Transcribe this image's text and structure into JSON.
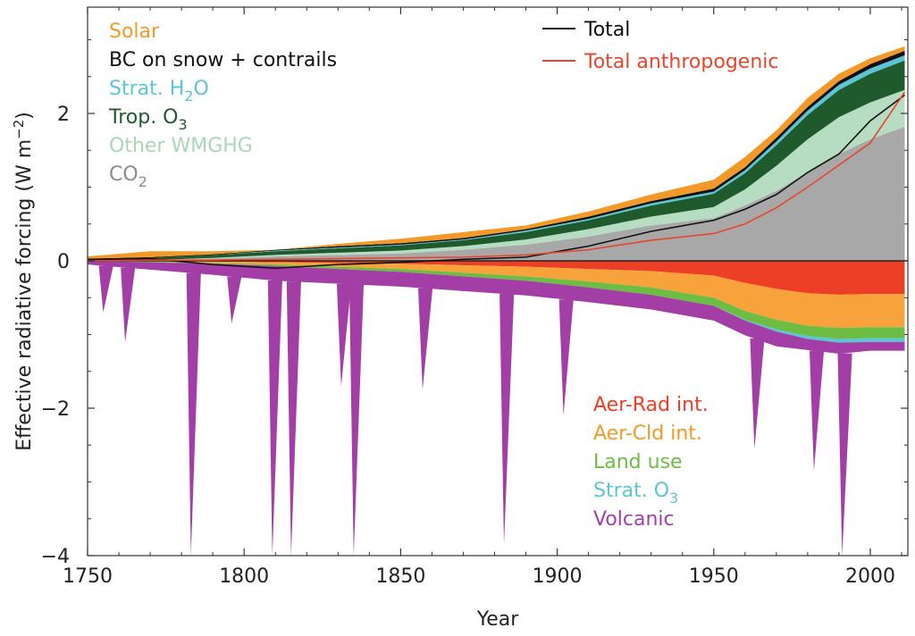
{
  "chart_data": {
    "type": "area",
    "xlabel": "Year",
    "ylabel": "Effective radiative forcing (W m",
    "ylabel_unit_sup": "−2",
    "ylabel_close": ")",
    "xlim": [
      1750,
      2012
    ],
    "ylim": [
      -4,
      3.5
    ],
    "xticks": [
      {
        "value": 1750,
        "label": "1750"
      },
      {
        "value": 1800,
        "label": "1800"
      },
      {
        "value": 1850,
        "label": "1850"
      },
      {
        "value": 1900,
        "label": "1900"
      },
      {
        "value": 1950,
        "label": "1950"
      },
      {
        "value": 2000,
        "label": "2000"
      }
    ],
    "yticks": [
      {
        "value": -4,
        "label": "−4"
      },
      {
        "value": -2,
        "label": "−2"
      },
      {
        "value": 0,
        "label": "0"
      },
      {
        "value": 2,
        "label": "2"
      }
    ],
    "years": [
      1750,
      1770,
      1790,
      1810,
      1830,
      1850,
      1870,
      1890,
      1910,
      1930,
      1950,
      1960,
      1970,
      1980,
      1990,
      2000,
      2011
    ],
    "positive_series": [
      {
        "name": "CO₂",
        "color": "#a8a8a8",
        "values": [
          0.0,
          0.01,
          0.03,
          0.06,
          0.08,
          0.1,
          0.15,
          0.22,
          0.33,
          0.48,
          0.58,
          0.75,
          0.95,
          1.2,
          1.45,
          1.65,
          1.82
        ]
      },
      {
        "name": "Other WMGHG",
        "color": "#b6dcc2",
        "values": [
          0.0,
          0.0,
          0.01,
          0.02,
          0.03,
          0.04,
          0.05,
          0.07,
          0.1,
          0.12,
          0.15,
          0.22,
          0.34,
          0.45,
          0.5,
          0.5,
          0.5
        ]
      },
      {
        "name": "Trop. O₃",
        "color": "#1f5a2c",
        "values": [
          0.02,
          0.03,
          0.04,
          0.05,
          0.06,
          0.07,
          0.08,
          0.1,
          0.12,
          0.15,
          0.18,
          0.22,
          0.28,
          0.33,
          0.37,
          0.39,
          0.4
        ]
      },
      {
        "name": "Strat. H₂O",
        "color": "#5bc5d6",
        "values": [
          0.0,
          0.0,
          0.0,
          0.01,
          0.01,
          0.01,
          0.01,
          0.02,
          0.02,
          0.03,
          0.03,
          0.04,
          0.05,
          0.06,
          0.07,
          0.07,
          0.07
        ]
      },
      {
        "name": "BC on snow + contrails",
        "color": "#111111",
        "values": [
          0.01,
          0.01,
          0.01,
          0.01,
          0.02,
          0.02,
          0.02,
          0.02,
          0.03,
          0.03,
          0.04,
          0.04,
          0.05,
          0.05,
          0.05,
          0.06,
          0.06
        ]
      },
      {
        "name": "Solar",
        "color": "#f19a2a",
        "values": [
          0.03,
          0.08,
          0.04,
          0.0,
          0.03,
          0.06,
          0.08,
          0.05,
          0.07,
          0.09,
          0.12,
          0.14,
          0.1,
          0.12,
          0.1,
          0.08,
          0.06
        ]
      }
    ],
    "negative_series": [
      {
        "name": "Aer-Rad int.",
        "color": "#ec3f26",
        "values": [
          0.0,
          0.0,
          -0.01,
          -0.02,
          -0.03,
          -0.04,
          -0.06,
          -0.08,
          -0.11,
          -0.14,
          -0.2,
          -0.3,
          -0.38,
          -0.44,
          -0.46,
          -0.45,
          -0.45
        ]
      },
      {
        "name": "Aer-Cld int.",
        "color": "#f7a23a",
        "values": [
          0.0,
          -0.01,
          -0.02,
          -0.03,
          -0.05,
          -0.07,
          -0.1,
          -0.13,
          -0.17,
          -0.22,
          -0.3,
          -0.38,
          -0.42,
          -0.44,
          -0.45,
          -0.45,
          -0.45
        ]
      },
      {
        "name": "Land use",
        "color": "#6dbd45",
        "values": [
          0.0,
          -0.01,
          -0.01,
          -0.02,
          -0.03,
          -0.04,
          -0.05,
          -0.06,
          -0.08,
          -0.1,
          -0.11,
          -0.12,
          -0.13,
          -0.14,
          -0.15,
          -0.15,
          -0.15
        ]
      },
      {
        "name": "Strat. O₃",
        "color": "#5bc5d6",
        "values": [
          0.0,
          0.0,
          0.0,
          0.0,
          0.0,
          0.0,
          0.0,
          0.0,
          0.0,
          0.0,
          0.0,
          -0.01,
          -0.03,
          -0.04,
          -0.05,
          -0.05,
          -0.05
        ]
      },
      {
        "name": "Volcanic",
        "color": "#a23ea6",
        "values": [
          -0.05,
          -0.1,
          -0.15,
          -0.2,
          -0.2,
          -0.2,
          -0.2,
          -0.2,
          -0.2,
          -0.2,
          -0.2,
          -0.2,
          -0.2,
          -0.15,
          -0.15,
          -0.12,
          -0.12
        ]
      }
    ],
    "volcanic_events": [
      {
        "year": 1755,
        "value": -0.7
      },
      {
        "year": 1762,
        "value": -1.1
      },
      {
        "year": 1783,
        "value": -4.0
      },
      {
        "year": 1796,
        "value": -0.85
      },
      {
        "year": 1809,
        "value": -4.0
      },
      {
        "year": 1815,
        "value": -4.0
      },
      {
        "year": 1831,
        "value": -1.7
      },
      {
        "year": 1835,
        "value": -4.0
      },
      {
        "year": 1857,
        "value": -1.75
      },
      {
        "year": 1883,
        "value": -3.85
      },
      {
        "year": 1902,
        "value": -2.1
      },
      {
        "year": 1963,
        "value": -2.55
      },
      {
        "year": 1982,
        "value": -2.85
      },
      {
        "year": 1991,
        "value": -4.0
      }
    ],
    "lines": [
      {
        "name": "Total",
        "color": "#111111",
        "values": [
          0.02,
          0.03,
          -0.05,
          -0.1,
          -0.05,
          -0.02,
          0.02,
          0.05,
          0.2,
          0.4,
          0.55,
          0.7,
          0.9,
          1.2,
          1.45,
          1.9,
          2.25
        ]
      },
      {
        "name": "Total anthropogenic",
        "color": "#e8452c",
        "values": [
          0.0,
          0.01,
          0.01,
          0.02,
          0.03,
          0.04,
          0.05,
          0.08,
          0.15,
          0.28,
          0.37,
          0.5,
          0.72,
          1.0,
          1.3,
          1.6,
          2.29
        ]
      }
    ],
    "legend_top_left": [
      {
        "text": "Solar",
        "sub": "",
        "tail": "",
        "color": "#f19a2a"
      },
      {
        "text": "BC on snow + contrails",
        "sub": "",
        "tail": "",
        "color": "#111111"
      },
      {
        "text": "Strat. H",
        "sub": "2",
        "tail": "O",
        "color": "#5bc5d6"
      },
      {
        "text": "Trop. O",
        "sub": "3",
        "tail": "",
        "color": "#1f5a2c"
      },
      {
        "text": "Other WMGHG",
        "sub": "",
        "tail": "",
        "color": "#a9d6b6"
      },
      {
        "text": "CO",
        "sub": "2",
        "tail": "",
        "color": "#8c8c8c"
      }
    ],
    "legend_lines": [
      {
        "text": "Total",
        "color": "#111111"
      },
      {
        "text": "Total anthropogenic",
        "color": "#e8452c"
      }
    ],
    "legend_bottom_right": [
      {
        "text": "Aer-Rad int.",
        "sub": "",
        "color": "#ec3f26"
      },
      {
        "text": "Aer-Cld int.",
        "sub": "",
        "color": "#f19a2a"
      },
      {
        "text": "Land use",
        "sub": "",
        "color": "#6dbd45"
      },
      {
        "text": "Strat. O",
        "sub": "3",
        "color": "#5bc5d6"
      },
      {
        "text": "Volcanic",
        "sub": "",
        "color": "#a23ea6"
      }
    ],
    "zero_line": true,
    "grid": false,
    "legend_placement": "top-left, top-right, bottom-right"
  }
}
